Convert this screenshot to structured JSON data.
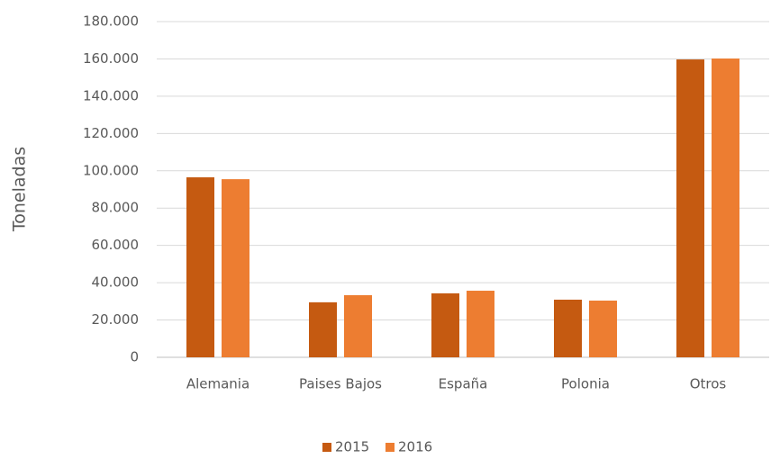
{
  "chart_data": {
    "type": "bar",
    "y_label": "Toneladas",
    "categories": [
      "Alemania",
      "Paises Bajos",
      "España",
      "Polonia",
      "Otros"
    ],
    "series": [
      {
        "name": "2015",
        "color": "#c55a11",
        "values": [
          96500,
          29500,
          34300,
          30900,
          159700
        ]
      },
      {
        "name": "2016",
        "color": "#ed7d31",
        "values": [
          95500,
          33300,
          35700,
          30400,
          160200
        ]
      }
    ],
    "ylim": [
      0,
      180000
    ],
    "yticks": [
      0,
      {
        "value": 20000,
        "label": "20.000"
      },
      {
        "value": 40000,
        "label": "40.000"
      },
      {
        "value": 60000,
        "label": "60.000"
      },
      {
        "value": 80000,
        "label": "80.000"
      },
      {
        "value": 100000,
        "label": "100.000"
      },
      {
        "value": 120000,
        "label": "120.000"
      },
      {
        "value": 140000,
        "label": "140.000"
      },
      {
        "value": 160000,
        "label": "160.000"
      },
      {
        "value": 180000,
        "label": "180.000"
      }
    ],
    "grid": true,
    "legend": "bottom"
  }
}
